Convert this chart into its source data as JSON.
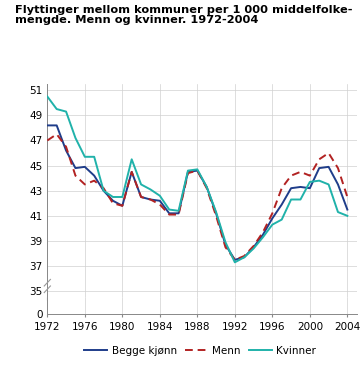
{
  "title_line1": "Flyttinger mellom kommuner per 1 000 middelfolke-",
  "title_line2": "mengde. Menn og kvinner. 1972-2004",
  "years": [
    1972,
    1973,
    1974,
    1975,
    1976,
    1977,
    1978,
    1979,
    1980,
    1981,
    1982,
    1983,
    1984,
    1985,
    1986,
    1987,
    1988,
    1989,
    1990,
    1991,
    1992,
    1993,
    1994,
    1995,
    1996,
    1997,
    1998,
    1999,
    2000,
    2001,
    2002,
    2003,
    2004
  ],
  "begge": [
    48.2,
    48.2,
    46.2,
    44.8,
    44.9,
    44.2,
    43.0,
    42.2,
    41.8,
    44.5,
    42.5,
    42.3,
    42.2,
    41.2,
    41.2,
    44.5,
    44.6,
    43.3,
    41.2,
    38.7,
    37.5,
    37.7,
    38.5,
    39.5,
    40.8,
    41.9,
    43.2,
    43.3,
    43.2,
    44.8,
    44.9,
    43.5,
    41.5
  ],
  "menn": [
    47.0,
    47.5,
    46.5,
    44.2,
    43.5,
    43.8,
    43.2,
    42.0,
    41.8,
    44.5,
    42.5,
    42.3,
    41.9,
    41.1,
    41.1,
    44.4,
    44.6,
    43.2,
    41.0,
    38.5,
    37.5,
    37.8,
    38.6,
    39.7,
    41.2,
    43.2,
    44.2,
    44.5,
    44.2,
    45.5,
    46.0,
    44.8,
    42.5
  ],
  "kvinner": [
    50.5,
    49.5,
    49.3,
    47.2,
    45.7,
    45.7,
    43.0,
    42.5,
    42.5,
    45.5,
    43.5,
    43.1,
    42.6,
    41.5,
    41.4,
    44.6,
    44.7,
    43.3,
    41.3,
    38.9,
    37.3,
    37.7,
    38.4,
    39.3,
    40.3,
    40.7,
    42.3,
    42.3,
    43.7,
    43.8,
    43.5,
    41.3,
    41.0
  ],
  "color_begge": "#1f3d8a",
  "color_menn": "#b22222",
  "color_kvinner": "#20b2aa",
  "xlim": [
    1972,
    2005
  ],
  "xticks": [
    1972,
    1976,
    1980,
    1984,
    1988,
    1992,
    1996,
    2000,
    2004
  ],
  "yticks_main": [
    35,
    37,
    39,
    41,
    43,
    45,
    47,
    49,
    51
  ],
  "ylim_main": [
    34.5,
    51.5
  ],
  "legend_labels": [
    "Begge kjønn",
    "Menn",
    "Kvinner"
  ],
  "background_color": "#ffffff",
  "grid_color": "#d0d0d0",
  "spine_color": "#888888"
}
